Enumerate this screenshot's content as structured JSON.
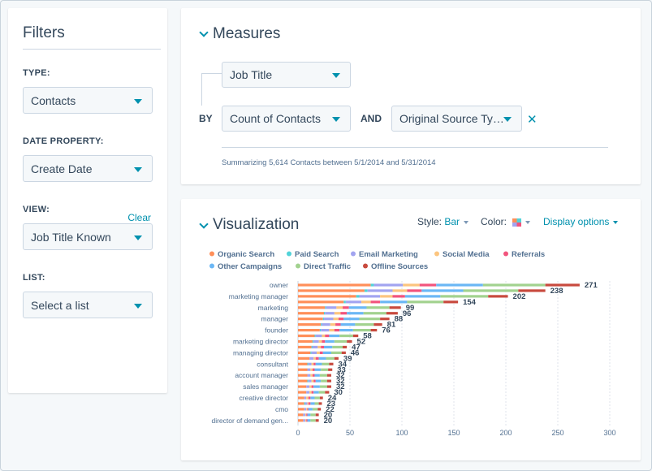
{
  "filters": {
    "title": "Filters",
    "type": {
      "label": "TYPE:",
      "value": "Contacts"
    },
    "date_property": {
      "label": "DATE PROPERTY:",
      "value": "Create Date"
    },
    "view": {
      "label": "VIEW:",
      "clear": "Clear",
      "value": "Job Title Known"
    },
    "list": {
      "label": "LIST:",
      "value": "Select a list"
    }
  },
  "measures": {
    "title": "Measures",
    "primary": "Job Title",
    "by": "BY",
    "measure": "Count of Contacts",
    "and": "AND",
    "breakdown": "Original Source Ty…",
    "close": "✕",
    "summary": "Summarizing 5,614 Contacts between 5/1/2014 and 5/31/2014"
  },
  "visualization": {
    "title": "Visualization",
    "style_label": "Style:",
    "style_value": "Bar",
    "color_label": "Color:",
    "display_options": "Display options"
  },
  "colors": {
    "accent": "#0091ae",
    "organic_search": "#ff8f59",
    "paid_search": "#51d3d9",
    "email_marketing": "#a2a4f0",
    "social_media": "#fcc57f",
    "referrals": "#f2547d",
    "other_campaigns": "#6bb7f5",
    "direct_traffic": "#a2d28f",
    "offline_sources": "#c84a3e"
  },
  "chart_data": {
    "type": "bar",
    "orientation": "horizontal",
    "stacked": true,
    "legend": [
      {
        "name": "Organic Search",
        "color": "#ff8f59"
      },
      {
        "name": "Paid Search",
        "color": "#51d3d9"
      },
      {
        "name": "Email Marketing",
        "color": "#a2a4f0"
      },
      {
        "name": "Social Media",
        "color": "#fcc57f"
      },
      {
        "name": "Referrals",
        "color": "#f2547d"
      },
      {
        "name": "Other Campaigns",
        "color": "#6bb7f5"
      },
      {
        "name": "Direct Traffic",
        "color": "#a2d28f"
      },
      {
        "name": "Offline Sources",
        "color": "#c84a3e"
      }
    ],
    "legend_position": "top-left",
    "categories": [
      "owner",
      "",
      "marketing manager",
      "",
      "marketing",
      "",
      "manager",
      "",
      "founder",
      "",
      "marketing director",
      "",
      "managing director",
      "",
      "consultant",
      "",
      "account manager",
      "",
      "sales manager",
      "",
      "creative director",
      "",
      "cmo",
      "",
      "director of demand gen..."
    ],
    "totals": [
      271,
      238,
      202,
      154,
      99,
      96,
      88,
      81,
      76,
      58,
      52,
      47,
      46,
      39,
      34,
      33,
      32,
      32,
      32,
      30,
      24,
      23,
      22,
      20,
      20
    ],
    "series": [
      {
        "name": "Organic Search",
        "values": [
          70,
          64,
          56,
          44,
          26,
          25,
          24,
          22,
          21,
          16,
          14,
          13,
          12,
          11,
          9,
          9,
          9,
          9,
          8,
          8,
          6,
          6,
          6,
          5,
          5
        ]
      },
      {
        "name": "Paid Search",
        "values": [
          3,
          3,
          3,
          2,
          1,
          1,
          1,
          1,
          1,
          1,
          1,
          1,
          1,
          0,
          1,
          0,
          0,
          1,
          0,
          0,
          0,
          1,
          0,
          0,
          0
        ]
      },
      {
        "name": "Email Marketing",
        "values": [
          28,
          24,
          20,
          15,
          10,
          9,
          9,
          8,
          8,
          6,
          5,
          5,
          5,
          4,
          3,
          3,
          3,
          3,
          3,
          3,
          2,
          2,
          2,
          2,
          2
        ]
      },
      {
        "name": "Social Media",
        "values": [
          16,
          14,
          12,
          9,
          6,
          6,
          5,
          5,
          5,
          3,
          3,
          3,
          3,
          2,
          2,
          2,
          2,
          2,
          2,
          2,
          2,
          1,
          1,
          1,
          1
        ]
      },
      {
        "name": "Referrals",
        "values": [
          16,
          14,
          12,
          9,
          6,
          6,
          5,
          5,
          5,
          4,
          3,
          3,
          3,
          3,
          2,
          2,
          2,
          2,
          2,
          2,
          2,
          2,
          1,
          1,
          1
        ]
      },
      {
        "name": "Other Campaigns",
        "values": [
          45,
          40,
          34,
          26,
          17,
          16,
          15,
          14,
          13,
          10,
          9,
          8,
          8,
          7,
          6,
          6,
          5,
          5,
          6,
          5,
          4,
          4,
          4,
          3,
          3
        ]
      },
      {
        "name": "Direct Traffic",
        "values": [
          60,
          53,
          46,
          35,
          22,
          22,
          20,
          18,
          17,
          13,
          12,
          10,
          10,
          8,
          7,
          7,
          7,
          6,
          7,
          6,
          5,
          4,
          5,
          5,
          5
        ]
      },
      {
        "name": "Offline Sources",
        "values": [
          33,
          26,
          19,
          14,
          11,
          11,
          9,
          8,
          6,
          5,
          5,
          4,
          4,
          4,
          4,
          4,
          4,
          4,
          4,
          4,
          3,
          3,
          3,
          3,
          3
        ]
      }
    ],
    "xticks": [
      0,
      50,
      100,
      150,
      200,
      250,
      300
    ],
    "xlim": [
      0,
      300
    ],
    "grid": true
  }
}
